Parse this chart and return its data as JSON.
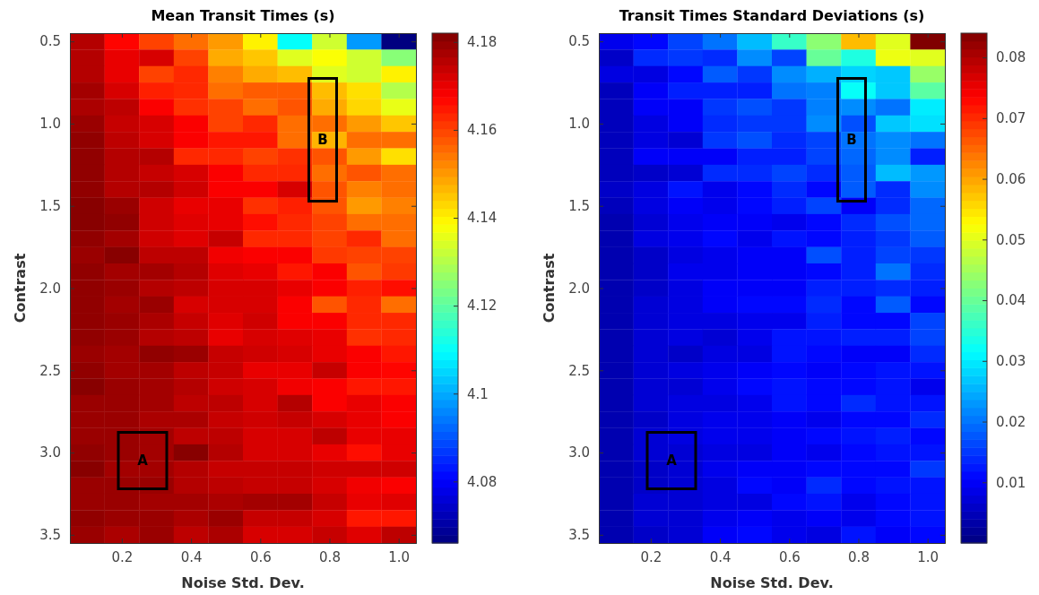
{
  "chart_data": [
    {
      "type": "heatmap",
      "title": "Mean Transit Times (s)",
      "xlabel": "Noise Std. Dev.",
      "ylabel": "Contrast",
      "xlim": [
        0.05,
        1.05
      ],
      "xticks": [
        0.2,
        0.4,
        0.6,
        0.8,
        {
          "value": 1,
          "label": "1.0"
        }
      ],
      "ylim": [
        3.55,
        0.45
      ],
      "yticks": [
        0.5,
        {
          "value": 1,
          "label": "1.0"
        },
        1.5,
        {
          "value": 2,
          "label": "2.0"
        },
        2.5,
        {
          "value": 3,
          "label": "3.0"
        },
        3.5
      ],
      "clim": [
        4.066,
        4.182
      ],
      "cticks": [
        4.08,
        4.1,
        4.12,
        4.14,
        4.16,
        4.18
      ],
      "annotations": [
        "A",
        "B"
      ],
      "cells": [
        [
          4.176,
          4.167,
          4.16,
          4.155,
          4.15,
          4.14,
          4.11,
          4.133,
          4.098,
          4.066
        ],
        [
          4.176,
          4.17,
          4.172,
          4.16,
          4.148,
          4.145,
          4.135,
          4.138,
          4.133,
          4.125
        ],
        [
          4.176,
          4.17,
          4.16,
          4.163,
          4.153,
          4.148,
          4.146,
          4.135,
          4.133,
          4.14
        ],
        [
          4.178,
          4.172,
          4.164,
          4.163,
          4.155,
          4.157,
          4.157,
          4.146,
          4.142,
          4.13
        ],
        [
          4.177,
          4.175,
          4.168,
          4.162,
          4.16,
          4.155,
          4.158,
          4.148,
          4.143,
          4.136
        ],
        [
          4.179,
          4.174,
          4.172,
          4.168,
          4.16,
          4.163,
          4.155,
          4.155,
          4.15,
          4.145
        ],
        [
          4.18,
          4.175,
          4.172,
          4.168,
          4.165,
          4.165,
          4.155,
          4.147,
          4.155,
          4.155
        ],
        [
          4.18,
          4.176,
          4.176,
          4.163,
          4.163,
          4.16,
          4.162,
          4.158,
          4.15,
          4.142
        ],
        [
          4.18,
          4.176,
          4.174,
          4.172,
          4.168,
          4.163,
          4.163,
          4.155,
          4.158,
          4.155
        ],
        [
          4.18,
          4.176,
          4.176,
          4.173,
          4.168,
          4.168,
          4.172,
          4.158,
          4.153,
          4.155
        ],
        [
          4.181,
          4.179,
          4.173,
          4.17,
          4.17,
          4.162,
          4.164,
          4.158,
          4.15,
          4.153
        ],
        [
          4.181,
          4.18,
          4.173,
          4.171,
          4.17,
          4.166,
          4.163,
          4.16,
          4.155,
          4.155
        ],
        [
          4.18,
          4.178,
          4.173,
          4.171,
          4.174,
          4.163,
          4.163,
          4.16,
          4.163,
          4.155
        ],
        [
          4.179,
          4.181,
          4.175,
          4.175,
          4.169,
          4.168,
          4.168,
          4.161,
          4.16,
          4.16
        ],
        [
          4.18,
          4.178,
          4.178,
          4.176,
          4.171,
          4.17,
          4.165,
          4.168,
          4.158,
          4.161
        ],
        [
          4.18,
          4.179,
          4.176,
          4.175,
          4.172,
          4.172,
          4.17,
          4.168,
          4.164,
          4.166
        ],
        [
          4.18,
          4.178,
          4.179,
          4.172,
          4.172,
          4.172,
          4.168,
          4.158,
          4.163,
          4.155
        ],
        [
          4.18,
          4.179,
          4.177,
          4.174,
          4.171,
          4.173,
          4.168,
          4.168,
          4.163,
          4.163
        ],
        [
          4.18,
          4.179,
          4.176,
          4.175,
          4.17,
          4.172,
          4.171,
          4.17,
          4.162,
          4.163
        ],
        [
          4.179,
          4.178,
          4.18,
          4.179,
          4.174,
          4.173,
          4.172,
          4.17,
          4.168,
          4.165
        ],
        [
          4.18,
          4.178,
          4.178,
          4.175,
          4.174,
          4.17,
          4.17,
          4.174,
          4.168,
          4.167
        ],
        [
          4.181,
          4.179,
          4.178,
          4.176,
          4.173,
          4.172,
          4.169,
          4.168,
          4.165,
          4.165
        ],
        [
          4.179,
          4.179,
          4.178,
          4.175,
          4.175,
          4.172,
          4.176,
          4.168,
          4.17,
          4.168
        ],
        [
          4.179,
          4.179,
          4.177,
          4.177,
          4.174,
          4.173,
          4.174,
          4.172,
          4.17,
          4.168
        ],
        [
          4.179,
          4.179,
          4.178,
          4.175,
          4.175,
          4.172,
          4.172,
          4.175,
          4.17,
          4.17
        ],
        [
          4.18,
          4.179,
          4.178,
          4.181,
          4.176,
          4.172,
          4.172,
          4.17,
          4.166,
          4.17
        ],
        [
          4.181,
          4.178,
          4.178,
          4.176,
          4.174,
          4.174,
          4.174,
          4.173,
          4.173,
          4.173
        ],
        [
          4.179,
          4.179,
          4.179,
          4.176,
          4.175,
          4.174,
          4.174,
          4.172,
          4.169,
          4.168
        ],
        [
          4.179,
          4.179,
          4.178,
          4.178,
          4.177,
          4.178,
          4.178,
          4.174,
          4.17,
          4.171
        ],
        [
          4.18,
          4.179,
          4.179,
          4.177,
          4.179,
          4.174,
          4.174,
          4.172,
          4.165,
          4.165
        ],
        [
          4.179,
          4.177,
          4.179,
          4.175,
          4.177,
          4.172,
          4.172,
          4.174,
          4.171,
          4.175
        ]
      ]
    },
    {
      "type": "heatmap",
      "title": "Transit Times Standard Deviations (s)",
      "xlabel": "Noise Std. Dev.",
      "ylabel": "Contrast",
      "xlim": [
        0.05,
        1.05
      ],
      "xticks": [
        0.2,
        0.4,
        0.6,
        0.8,
        {
          "value": 1,
          "label": "1.0"
        }
      ],
      "ylim": [
        3.55,
        0.45
      ],
      "yticks": [
        0.5,
        {
          "value": 1,
          "label": "1.0"
        },
        1.5,
        {
          "value": 2,
          "label": "2.0"
        },
        2.5,
        {
          "value": 3,
          "label": "3.0"
        },
        3.5
      ],
      "clim": [
        0,
        0.084
      ],
      "cticks": [
        0.01,
        0.02,
        0.03,
        0.04,
        0.05,
        0.06,
        0.07,
        0.08
      ],
      "annotations": [
        "A",
        "B"
      ],
      "cells": [
        [
          0.009,
          0.011,
          0.016,
          0.02,
          0.026,
          0.036,
          0.043,
          0.058,
          0.05,
          0.084
        ],
        [
          0.006,
          0.014,
          0.015,
          0.014,
          0.022,
          0.016,
          0.04,
          0.034,
          0.051,
          0.05
        ],
        [
          0.008,
          0.008,
          0.011,
          0.018,
          0.015,
          0.022,
          0.025,
          0.028,
          0.027,
          0.044
        ],
        [
          0.005,
          0.01,
          0.013,
          0.013,
          0.013,
          0.02,
          0.021,
          0.032,
          0.027,
          0.039
        ],
        [
          0.005,
          0.01,
          0.01,
          0.015,
          0.017,
          0.015,
          0.021,
          0.022,
          0.02,
          0.03
        ],
        [
          0.005,
          0.008,
          0.01,
          0.014,
          0.015,
          0.015,
          0.022,
          0.017,
          0.027,
          0.029
        ],
        [
          0.005,
          0.008,
          0.007,
          0.015,
          0.017,
          0.014,
          0.016,
          0.02,
          0.022,
          0.02
        ],
        [
          0.005,
          0.01,
          0.01,
          0.01,
          0.013,
          0.013,
          0.016,
          0.019,
          0.022,
          0.013
        ],
        [
          0.005,
          0.006,
          0.007,
          0.014,
          0.014,
          0.016,
          0.014,
          0.018,
          0.026,
          0.023
        ],
        [
          0.006,
          0.008,
          0.012,
          0.009,
          0.011,
          0.014,
          0.011,
          0.018,
          0.014,
          0.022
        ],
        [
          0.005,
          0.008,
          0.01,
          0.009,
          0.011,
          0.013,
          0.016,
          0.01,
          0.014,
          0.019
        ],
        [
          0.004,
          0.007,
          0.009,
          0.01,
          0.01,
          0.009,
          0.011,
          0.014,
          0.017,
          0.019
        ],
        [
          0.004,
          0.008,
          0.009,
          0.011,
          0.009,
          0.012,
          0.011,
          0.013,
          0.015,
          0.018
        ],
        [
          0.004,
          0.006,
          0.008,
          0.009,
          0.01,
          0.01,
          0.017,
          0.013,
          0.016,
          0.015
        ],
        [
          0.004,
          0.006,
          0.009,
          0.009,
          0.01,
          0.01,
          0.011,
          0.013,
          0.02,
          0.014
        ],
        [
          0.004,
          0.006,
          0.008,
          0.01,
          0.01,
          0.01,
          0.013,
          0.013,
          0.014,
          0.013
        ],
        [
          0.004,
          0.007,
          0.008,
          0.01,
          0.011,
          0.011,
          0.014,
          0.011,
          0.018,
          0.011
        ],
        [
          0.004,
          0.007,
          0.008,
          0.008,
          0.009,
          0.009,
          0.013,
          0.011,
          0.011,
          0.016
        ],
        [
          0.004,
          0.007,
          0.008,
          0.007,
          0.009,
          0.012,
          0.012,
          0.013,
          0.013,
          0.016
        ],
        [
          0.004,
          0.007,
          0.006,
          0.008,
          0.008,
          0.012,
          0.011,
          0.01,
          0.01,
          0.014
        ],
        [
          0.004,
          0.007,
          0.008,
          0.009,
          0.01,
          0.011,
          0.01,
          0.011,
          0.012,
          0.012
        ],
        [
          0.004,
          0.007,
          0.007,
          0.009,
          0.011,
          0.012,
          0.011,
          0.011,
          0.012,
          0.009
        ],
        [
          0.004,
          0.007,
          0.008,
          0.008,
          0.009,
          0.012,
          0.011,
          0.014,
          0.012,
          0.012
        ],
        [
          0.004,
          0.006,
          0.008,
          0.009,
          0.009,
          0.01,
          0.009,
          0.011,
          0.011,
          0.014
        ],
        [
          0.004,
          0.007,
          0.008,
          0.009,
          0.009,
          0.01,
          0.011,
          0.012,
          0.013,
          0.011
        ],
        [
          0.004,
          0.007,
          0.007,
          0.008,
          0.008,
          0.01,
          0.009,
          0.011,
          0.012,
          0.012
        ],
        [
          0.004,
          0.006,
          0.007,
          0.009,
          0.01,
          0.01,
          0.011,
          0.011,
          0.011,
          0.015
        ],
        [
          0.004,
          0.006,
          0.007,
          0.008,
          0.011,
          0.01,
          0.014,
          0.011,
          0.012,
          0.012
        ],
        [
          0.004,
          0.007,
          0.007,
          0.008,
          0.008,
          0.011,
          0.012,
          0.009,
          0.011,
          0.012
        ],
        [
          0.004,
          0.007,
          0.007,
          0.009,
          0.01,
          0.009,
          0.01,
          0.009,
          0.011,
          0.012
        ],
        [
          0.004,
          0.006,
          0.007,
          0.01,
          0.011,
          0.009,
          0.008,
          0.012,
          0.01,
          0.011
        ]
      ]
    }
  ]
}
